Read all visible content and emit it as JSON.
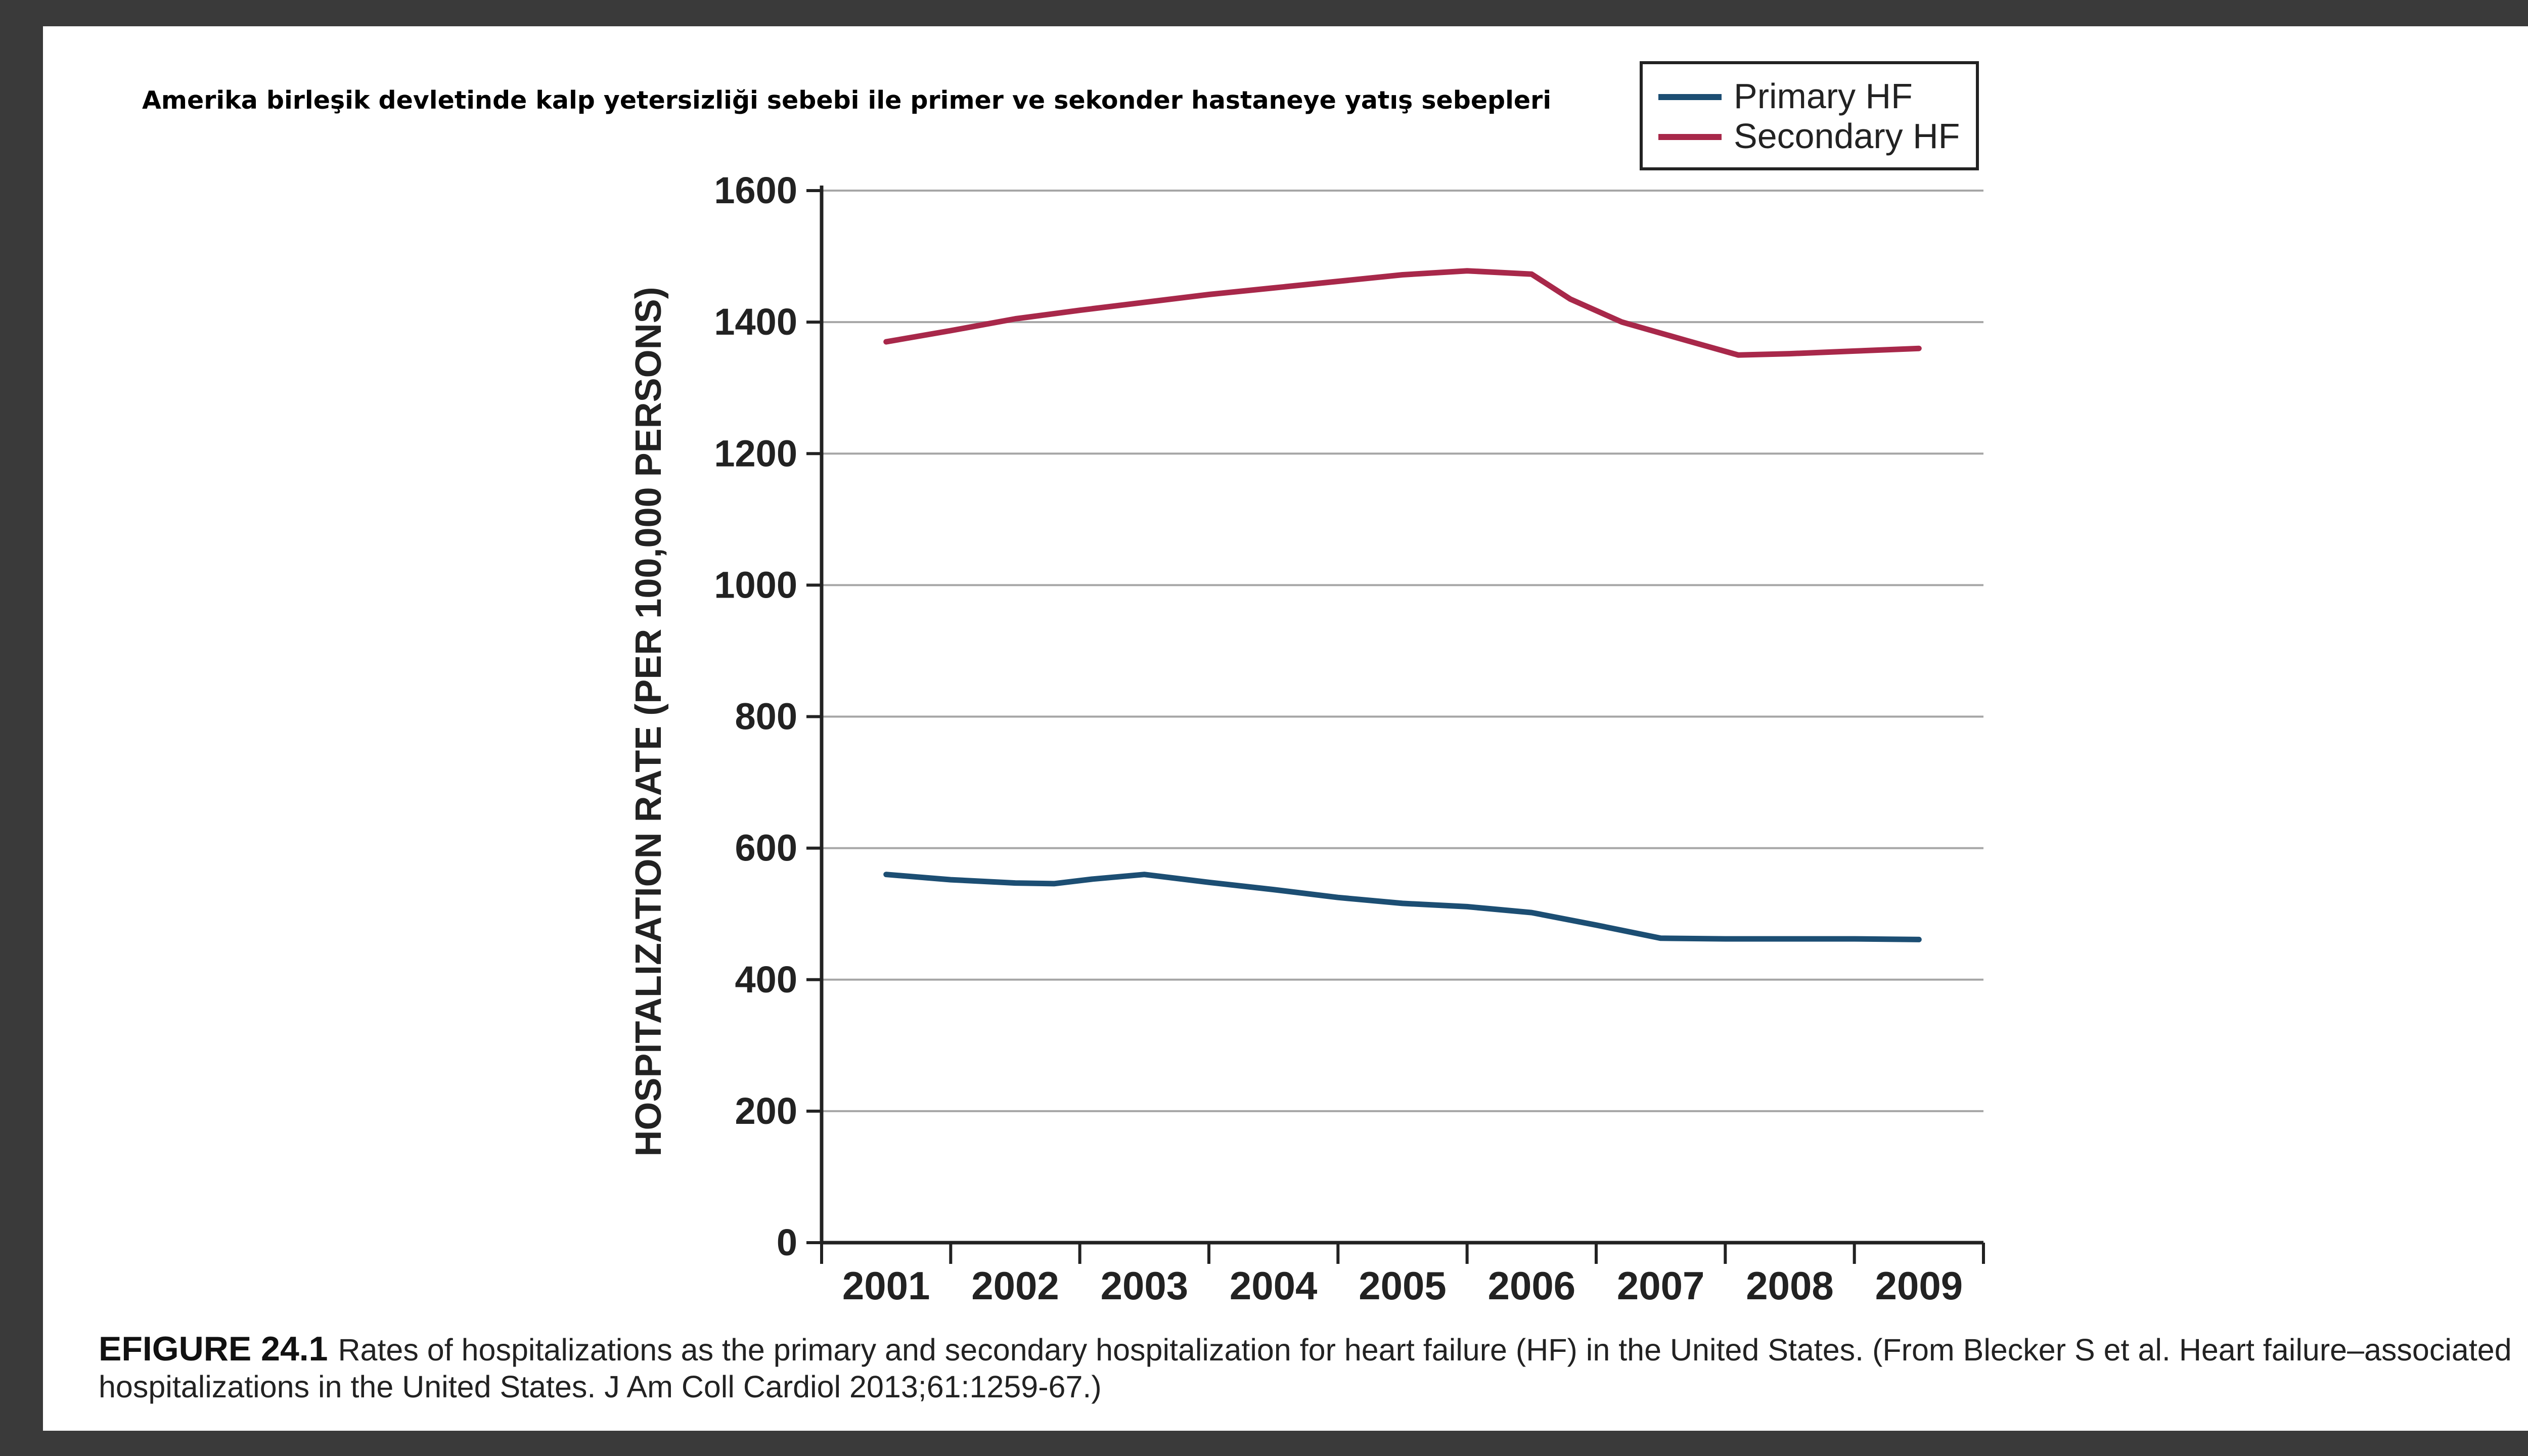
{
  "slide": {
    "title": "Amerika birleşik devletinde kalp yetersizliği sebebi ile primer ve sekonder hastaneye yatış sebepleri",
    "caption_label": "EFIGURE 24.1",
    "caption_text": "Rates of hospitalizations as the primary and secondary hospitalization for heart failure (HF) in the United States. (From Blecker S et al. Heart failure–associated hospitalizations in the United States. J Am Coll Cardiol 2013;61:1259-67.)"
  },
  "colors": {
    "primary": "#1c4e73",
    "secondary": "#a8284a",
    "grid": "#a6a6a6",
    "axis": "#222222"
  },
  "chart_data": {
    "type": "line",
    "title": "",
    "xlabel": "",
    "ylabel": "HOSPITALIZATION RATE (PER 100,000 PERSONS)",
    "categories": [
      "2001",
      "2002",
      "2003",
      "2004",
      "2005",
      "2006",
      "2007",
      "2008",
      "2009"
    ],
    "ylim": [
      0,
      1600
    ],
    "yticks": [
      "0",
      "200",
      "400",
      "600",
      "800",
      "1000",
      "1200",
      "1400",
      "1600"
    ],
    "grid": true,
    "legend_position": "top-right",
    "series": [
      {
        "name": "Primary HF",
        "color_key": "primary",
        "points": [
          [
            2001,
            560
          ],
          [
            2001.5,
            552
          ],
          [
            2002,
            547
          ],
          [
            2002.3,
            546
          ],
          [
            2002.6,
            553
          ],
          [
            2003,
            560
          ],
          [
            2003.5,
            548
          ],
          [
            2004,
            537
          ],
          [
            2004.5,
            525
          ],
          [
            2005,
            516
          ],
          [
            2005.5,
            511
          ],
          [
            2006,
            502
          ],
          [
            2006.5,
            483
          ],
          [
            2007,
            463
          ],
          [
            2007.5,
            462
          ],
          [
            2008,
            462
          ],
          [
            2008.5,
            462
          ],
          [
            2009,
            461
          ]
        ]
      },
      {
        "name": "Secondary HF",
        "color_key": "secondary",
        "points": [
          [
            2001,
            1370
          ],
          [
            2001.5,
            1387
          ],
          [
            2002,
            1405
          ],
          [
            2002.5,
            1418
          ],
          [
            2003,
            1430
          ],
          [
            2003.5,
            1442
          ],
          [
            2004,
            1452
          ],
          [
            2004.5,
            1462
          ],
          [
            2005,
            1472
          ],
          [
            2005.5,
            1478
          ],
          [
            2006,
            1473
          ],
          [
            2006.3,
            1435
          ],
          [
            2006.7,
            1400
          ],
          [
            2007.2,
            1372
          ],
          [
            2007.6,
            1350
          ],
          [
            2008,
            1352
          ],
          [
            2008.5,
            1356
          ],
          [
            2009,
            1360
          ]
        ]
      }
    ]
  }
}
